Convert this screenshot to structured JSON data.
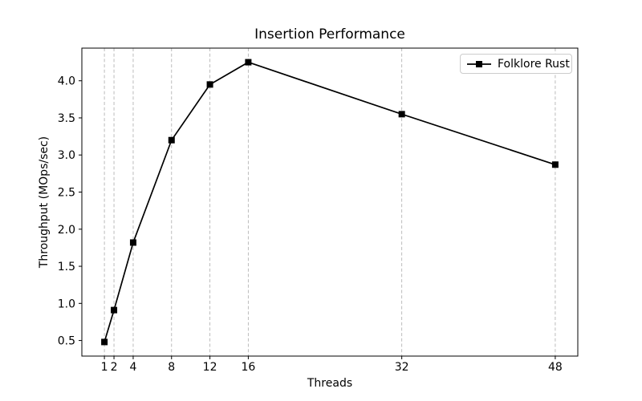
{
  "chart_data": {
    "type": "line",
    "title": "Insertion Performance",
    "xlabel": "Threads",
    "ylabel": "Throughput (MOps/sec)",
    "x_ticks": [
      1,
      2,
      4,
      8,
      12,
      16,
      32,
      48
    ],
    "y_ticks": [
      0.5,
      1.0,
      1.5,
      2.0,
      2.5,
      3.0,
      3.5,
      4.0
    ],
    "xlim": [
      -1.35,
      50.35
    ],
    "ylim": [
      0.29,
      4.44
    ],
    "grid": "vertical-dashed-only",
    "legend_position": "upper right",
    "series": [
      {
        "name": "Folklore Rust",
        "marker": "square",
        "color": "#000000",
        "x": [
          1,
          2,
          4,
          8,
          12,
          16,
          32,
          48
        ],
        "y": [
          0.48,
          0.91,
          1.82,
          3.2,
          3.95,
          4.25,
          3.55,
          2.87
        ]
      }
    ],
    "colors": {
      "background": "#ffffff",
      "line": "#000000",
      "grid": "#b4b4b4",
      "spine": "#000000",
      "tick_text": "#000000",
      "legend_border": "#cccccc"
    }
  }
}
